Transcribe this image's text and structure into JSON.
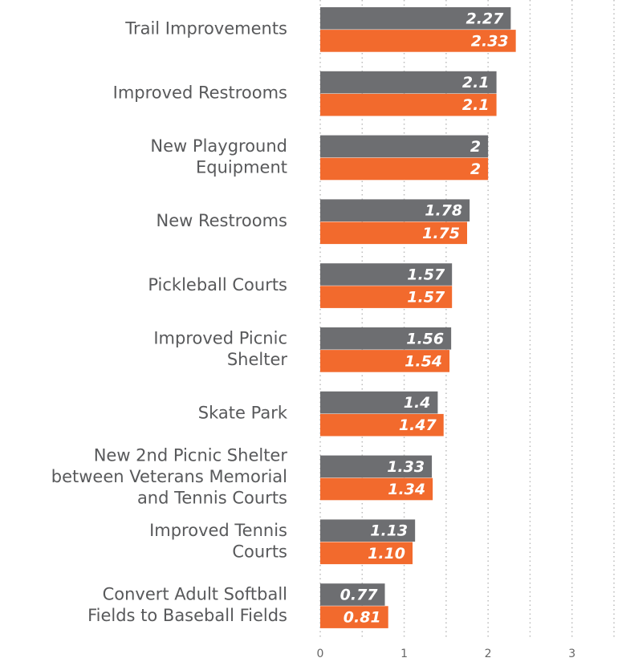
{
  "chart_data": {
    "type": "bar",
    "orientation": "horizontal",
    "categories": [
      "Trail Improvements",
      "Improved Restrooms",
      "New Playground\nEquipment",
      "New Restrooms",
      "Pickleball Courts",
      "Improved Picnic\nShelter",
      "Skate Park",
      "New 2nd Picnic Shelter\nbetween Veterans Memorial\nand Tennis Courts",
      "Improved Tennis\nCourts",
      "Convert Adult Softball\nFields to Baseball Fields"
    ],
    "series": [
      {
        "color": "#6d6e71",
        "values": [
          2.27,
          2.1,
          2,
          1.78,
          1.57,
          1.56,
          1.4,
          1.33,
          1.13,
          0.77
        ],
        "value_labels": [
          "2.27",
          "2.1",
          "2",
          "1.78",
          "1.57",
          "1.56",
          "1.4",
          "1.33",
          "1.13",
          "0.77"
        ]
      },
      {
        "color": "#f26a2d",
        "values": [
          2.33,
          2.1,
          2,
          1.75,
          1.57,
          1.54,
          1.47,
          1.34,
          1.1,
          0.81
        ],
        "value_labels": [
          "2.33",
          "2.1",
          "2",
          "1.75",
          "1.57",
          "1.54",
          "1.47",
          "1.34",
          "1.10",
          "0.81"
        ]
      }
    ],
    "xlim": [
      0,
      3.5
    ],
    "xticks": [
      0,
      1,
      2,
      3
    ],
    "grid": true,
    "grid_step": 0.5
  }
}
